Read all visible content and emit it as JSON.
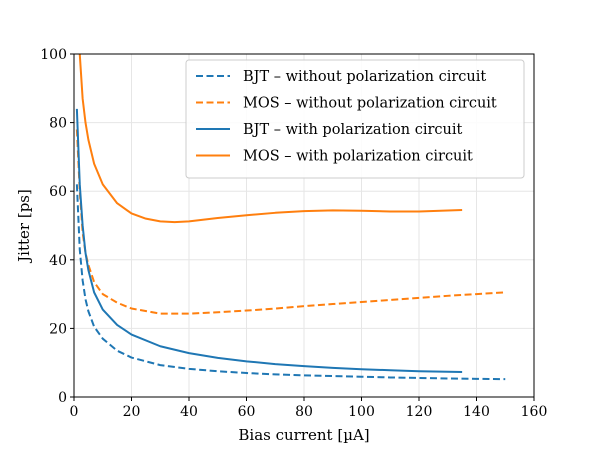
{
  "chart_data": {
    "type": "line",
    "title": "",
    "xlabel": "Bias current [µA]",
    "ylabel": "Jitter [ps]",
    "xlim": [
      0,
      160
    ],
    "ylim": [
      0,
      100
    ],
    "x_ticks": [
      0,
      20,
      40,
      60,
      80,
      100,
      120,
      140,
      160
    ],
    "y_ticks": [
      0,
      20,
      40,
      60,
      80,
      100
    ],
    "x_tick_labels": [
      "0",
      "20",
      "40",
      "60",
      "80",
      "100",
      "120",
      "140",
      "160"
    ],
    "y_tick_labels": [
      "0",
      "20",
      "40",
      "60",
      "80",
      "100"
    ],
    "grid": true,
    "legend_position": "top-right",
    "series": [
      {
        "name": "BJT – without polarization circuit",
        "color": "#1f77b4",
        "style": "dashed",
        "x": [
          1,
          2,
          3,
          4,
          5,
          7,
          10,
          15,
          20,
          30,
          40,
          50,
          60,
          70,
          80,
          90,
          100,
          110,
          120,
          130,
          140,
          150
        ],
        "y": [
          62,
          43,
          34,
          28.5,
          25,
          20.5,
          17,
          13.5,
          11.5,
          9.3,
          8.2,
          7.5,
          7.0,
          6.6,
          6.3,
          6.1,
          5.9,
          5.7,
          5.55,
          5.4,
          5.3,
          5.2
        ]
      },
      {
        "name": "MOS – without polarization circuit",
        "color": "#ff7f0e",
        "style": "dashed",
        "x": [
          1,
          2,
          3,
          4,
          5,
          7,
          10,
          15,
          20,
          30,
          40,
          50,
          60,
          70,
          80,
          90,
          100,
          110,
          120,
          130,
          140,
          150
        ],
        "y": [
          78,
          60,
          48,
          42,
          38.5,
          33.5,
          30,
          27.5,
          25.8,
          24.3,
          24.3,
          24.7,
          25.2,
          25.8,
          26.5,
          27.1,
          27.7,
          28.3,
          28.9,
          29.5,
          30.0,
          30.5
        ]
      },
      {
        "name": "BJT – with polarization circuit",
        "color": "#1f77b4",
        "style": "solid",
        "x": [
          1,
          2,
          3,
          4,
          5,
          7,
          10,
          15,
          20,
          30,
          40,
          50,
          60,
          70,
          80,
          90,
          100,
          110,
          120,
          135
        ],
        "y": [
          84,
          62,
          50,
          42,
          37,
          30.5,
          25.5,
          21,
          18.2,
          14.8,
          12.8,
          11.4,
          10.4,
          9.6,
          9.0,
          8.5,
          8.1,
          7.8,
          7.5,
          7.3
        ]
      },
      {
        "name": "MOS – with polarization circuit",
        "color": "#ff7f0e",
        "style": "solid",
        "x": [
          2,
          3,
          4,
          5,
          7,
          10,
          15,
          20,
          25,
          30,
          35,
          40,
          50,
          60,
          70,
          80,
          90,
          100,
          110,
          120,
          135
        ],
        "y": [
          100,
          87,
          80,
          75,
          68,
          62,
          56.5,
          53.5,
          52,
          51.2,
          51,
          51.2,
          52.2,
          53,
          53.7,
          54.2,
          54.4,
          54.3,
          54.1,
          54.1,
          54.5
        ]
      }
    ]
  }
}
